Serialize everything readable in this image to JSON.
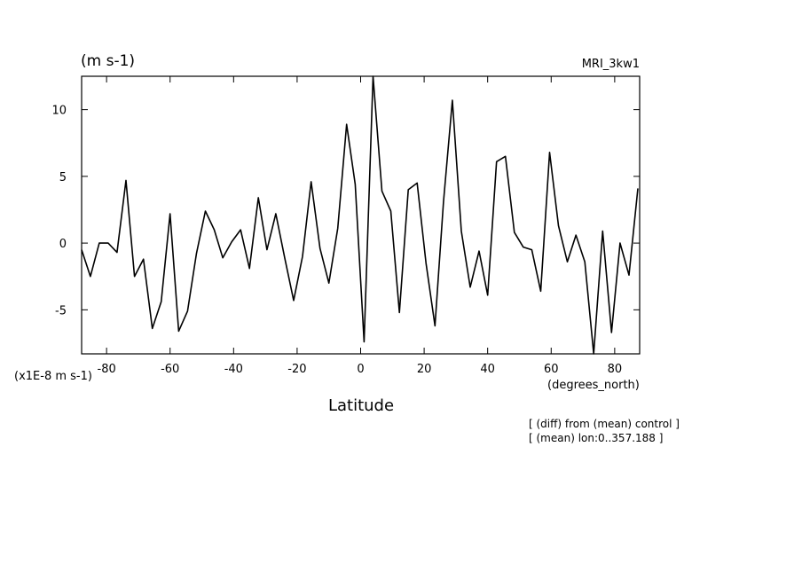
{
  "header": {
    "units": "(m s-1)",
    "model": "MRI_3kw1"
  },
  "notes": {
    "line1": "[ (diff) from (mean) control ]",
    "line2": "[ (mean) lon:0..357.188 ]"
  },
  "chart_data": {
    "type": "line",
    "xlabel": "Latitude",
    "xunits": "(degrees_north)",
    "yscale_note": "(x1E-8 m s-1)",
    "xlim": [
      -87.86,
      87.86
    ],
    "ylim": [
      -8.3,
      12.5
    ],
    "xticks": [
      -80,
      -60,
      -40,
      -20,
      0,
      20,
      40,
      60,
      80
    ],
    "yticks": [
      -5,
      0,
      5,
      10
    ],
    "xtick_labels": [
      "-80",
      "-60",
      "-40",
      "-20",
      "0",
      "20",
      "40",
      "60",
      "80"
    ],
    "ytick_labels": [
      "-5",
      "0",
      "5",
      "10"
    ],
    "series": [
      {
        "x": [
          -87.86,
          -85.1,
          -82.3,
          -79.5,
          -76.7,
          -73.9,
          -71.2,
          -68.4,
          -65.6,
          -62.8,
          -60.0,
          -57.3,
          -54.5,
          -51.7,
          -48.9,
          -46.1,
          -43.4,
          -40.6,
          -37.8,
          -35.0,
          -32.2,
          -29.5,
          -26.7,
          -23.9,
          -21.1,
          -18.3,
          -15.6,
          -12.8,
          -10.0,
          -7.2,
          -4.4,
          -1.7,
          1.1,
          3.9,
          6.7,
          9.5,
          12.2,
          15.0,
          17.8,
          20.6,
          23.4,
          26.1,
          28.9,
          31.7,
          34.5,
          37.3,
          40.0,
          42.8,
          45.6,
          48.4,
          51.2,
          53.9,
          56.7,
          59.5,
          62.3,
          65.1,
          67.8,
          70.6,
          73.4,
          76.2,
          79.0,
          81.7,
          84.5,
          87.3
        ],
        "values": [
          -0.5,
          -2.5,
          0.0,
          0.0,
          -0.7,
          4.7,
          -2.5,
          -1.2,
          -6.4,
          -4.4,
          2.2,
          -6.6,
          -5.1,
          -0.8,
          2.4,
          1.0,
          -1.1,
          0.1,
          1.0,
          -1.9,
          3.4,
          -0.5,
          2.2,
          -1.1,
          -4.3,
          -1.0,
          4.6,
          -0.4,
          -3.0,
          1.1,
          8.9,
          4.4,
          -7.4,
          12.5,
          3.9,
          2.4,
          -5.2,
          4.0,
          4.5,
          -1.5,
          -6.2,
          3.1,
          10.7,
          0.9,
          -3.3,
          -0.6,
          -3.9,
          6.1,
          6.5,
          0.8,
          -0.3,
          -0.5,
          -3.6,
          6.8,
          1.3,
          -1.4,
          0.6,
          -1.4,
          -8.3,
          0.9,
          -6.7,
          0.0,
          -2.4,
          4.1
        ]
      }
    ]
  }
}
